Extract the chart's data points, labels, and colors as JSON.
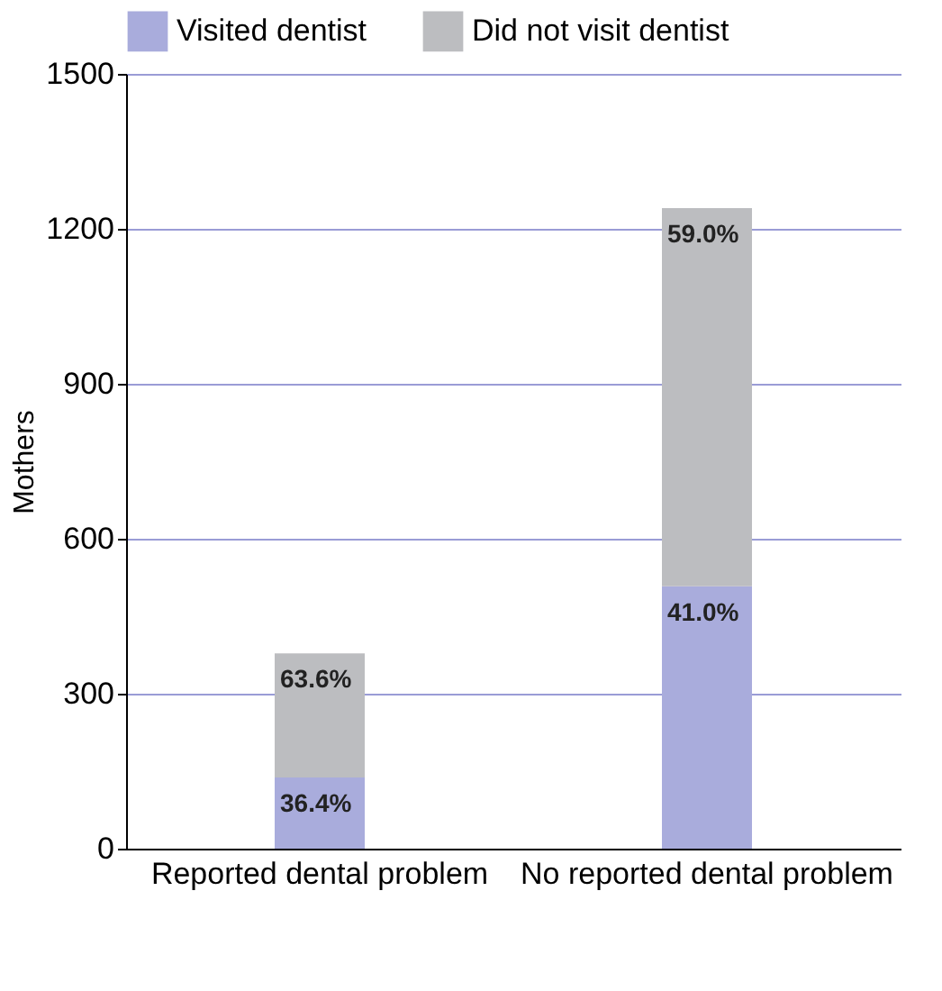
{
  "chart_data": {
    "type": "bar",
    "stacked": true,
    "ylabel": "Mothers",
    "categories": [
      "Reported dental problem",
      "No reported dental problem"
    ],
    "series": [
      {
        "name": "Visited dentist",
        "color": "#a9acdc",
        "values": [
          138,
          508
        ]
      },
      {
        "name": "Did not visit dentist",
        "color": "#bcbdc0",
        "values": [
          240,
          732
        ]
      }
    ],
    "annotations": [
      {
        "text": "36.4%",
        "x": "Reported dental problem",
        "y": 138
      },
      {
        "text": "41.0%",
        "x": "No reported dental problem",
        "y": 508
      },
      {
        "text": "63.6%",
        "x": "Reported dental problem",
        "y": 378
      },
      {
        "text": "59.0%",
        "x": "No reported dental problem",
        "y": 1240
      }
    ],
    "ylim": [
      0,
      1500
    ],
    "yticks": [
      0,
      300,
      600,
      900,
      1200,
      1500
    ],
    "grid": "y",
    "legend": "top"
  }
}
